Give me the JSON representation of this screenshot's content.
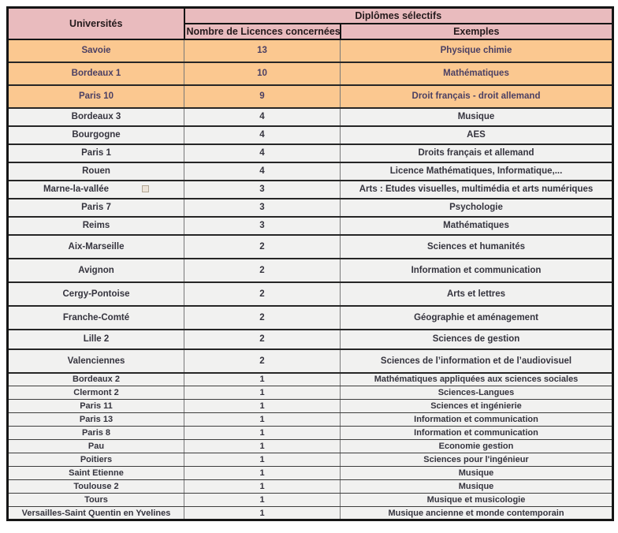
{
  "table": {
    "header": {
      "universities_label": "Universités",
      "group_label": "Diplômes sélectifs",
      "count_label": "Nombre de Licences concernées",
      "examples_label": "Exemples"
    },
    "colors": {
      "header_bg": "#e9bbbe",
      "highlight_row_bg": "#fbc890",
      "row_bg": "#f1f1f0",
      "outer_border": "#151515",
      "highlight_text": "#4a3f63",
      "row_text": "#35343e"
    },
    "rows": [
      {
        "university": "Savoie",
        "count": "13",
        "examples": "Physique chimie",
        "band": "highlight",
        "marker": false
      },
      {
        "university": "Bordeaux 1",
        "count": "10",
        "examples": "Mathématiques",
        "band": "highlight",
        "marker": false
      },
      {
        "university": "Paris 10",
        "count": "9",
        "examples": "Droit français - droit allemand",
        "band": "highlight",
        "marker": false
      },
      {
        "university": "Bordeaux 3",
        "count": "4",
        "examples": "Musique",
        "band": "medium",
        "marker": false
      },
      {
        "university": "Bourgogne",
        "count": "4",
        "examples": "AES",
        "band": "medium",
        "marker": false
      },
      {
        "university": "Paris 1",
        "count": "4",
        "examples": "Droits français et allemand",
        "band": "medium",
        "marker": false
      },
      {
        "university": "Rouen",
        "count": "4",
        "examples": "Licence Mathématiques, Informatique,...",
        "band": "medium",
        "marker": false
      },
      {
        "university": "Marne-la-vallée",
        "count": "3",
        "examples": "Arts : Etudes visuelles, multimédia et arts numériques",
        "band": "medium",
        "marker": true
      },
      {
        "university": "Paris 7",
        "count": "3",
        "examples": "Psychologie",
        "band": "medium",
        "marker": false
      },
      {
        "university": "Reims",
        "count": "3",
        "examples": "Mathématiques",
        "band": "medium",
        "marker": false
      },
      {
        "university": "Aix-Marseille",
        "count": "2",
        "examples": "Sciences et humanités",
        "band": "tall",
        "marker": false
      },
      {
        "university": "Avignon",
        "count": "2",
        "examples": "Information et communication",
        "band": "tall",
        "marker": false
      },
      {
        "university": "Cergy-Pontoise",
        "count": "2",
        "examples": "Arts et lettres",
        "band": "tall",
        "marker": false
      },
      {
        "university": "Franche-Comté",
        "count": "2",
        "examples": "Géographie et aménagement",
        "band": "tall",
        "marker": false
      },
      {
        "university": "Lille 2",
        "count": "2",
        "examples": "Sciences de gestion",
        "band": "medium2",
        "marker": false
      },
      {
        "university": "Valenciennes",
        "count": "2",
        "examples": "Sciences de l’information et de l’audiovisuel",
        "band": "tall",
        "marker": false
      },
      {
        "university": "Bordeaux 2",
        "count": "1",
        "examples": "Mathématiques appliquées aux sciences sociales",
        "band": "short",
        "marker": false
      },
      {
        "university": "Clermont 2",
        "count": "1",
        "examples": "Sciences-Langues",
        "band": "short",
        "marker": false
      },
      {
        "university": "Paris 11",
        "count": "1",
        "examples": "Sciences et ingénierie",
        "band": "short",
        "marker": false
      },
      {
        "university": "Paris 13",
        "count": "1",
        "examples": "Information et communication",
        "band": "short",
        "marker": false
      },
      {
        "university": "Paris 8",
        "count": "1",
        "examples": "Information et communication",
        "band": "short",
        "marker": false
      },
      {
        "university": "Pau",
        "count": "1",
        "examples": "Economie gestion",
        "band": "short",
        "marker": false
      },
      {
        "university": "Poitiers",
        "count": "1",
        "examples": "Sciences pour l'ingénieur",
        "band": "short",
        "marker": false
      },
      {
        "university": "Saint Etienne",
        "count": "1",
        "examples": "Musique",
        "band": "short",
        "marker": false
      },
      {
        "university": "Toulouse 2",
        "count": "1",
        "examples": "Musique",
        "band": "short",
        "marker": false
      },
      {
        "university": "Tours",
        "count": "1",
        "examples": "Musique et musicologie",
        "band": "short",
        "marker": false
      },
      {
        "university": "Versailles-Saint Quentin en Yvelines",
        "count": "1",
        "examples": "Musique ancienne et monde contemporain",
        "band": "short",
        "marker": false
      }
    ]
  },
  "chart_data": {
    "type": "table",
    "title": "Diplômes sélectifs",
    "columns": [
      "Universités",
      "Nombre de Licences concernées",
      "Exemples"
    ],
    "categories": [
      "Savoie",
      "Bordeaux 1",
      "Paris 10",
      "Bordeaux 3",
      "Bourgogne",
      "Paris 1",
      "Rouen",
      "Marne-la-vallée",
      "Paris 7",
      "Reims",
      "Aix-Marseille",
      "Avignon",
      "Cergy-Pontoise",
      "Franche-Comté",
      "Lille 2",
      "Valenciennes",
      "Bordeaux 2",
      "Clermont 2",
      "Paris 11",
      "Paris 13",
      "Paris 8",
      "Pau",
      "Poitiers",
      "Saint Etienne",
      "Toulouse 2",
      "Tours",
      "Versailles-Saint Quentin en Yvelines"
    ],
    "values": [
      13,
      10,
      9,
      4,
      4,
      4,
      4,
      3,
      3,
      3,
      2,
      2,
      2,
      2,
      2,
      2,
      1,
      1,
      1,
      1,
      1,
      1,
      1,
      1,
      1,
      1,
      1
    ],
    "examples": [
      "Physique chimie",
      "Mathématiques",
      "Droit français - droit allemand",
      "Musique",
      "AES",
      "Droits français et allemand",
      "Licence Mathématiques, Informatique,...",
      "Arts : Etudes visuelles, multimédia et arts numériques",
      "Psychologie",
      "Mathématiques",
      "Sciences et humanités",
      "Information et communication",
      "Arts et lettres",
      "Géographie et aménagement",
      "Sciences de gestion",
      "Sciences de l’information et de l’audiovisuel",
      "Mathématiques appliquées aux sciences sociales",
      "Sciences-Langues",
      "Sciences et ingénierie",
      "Information et communication",
      "Information et communication",
      "Economie gestion",
      "Sciences pour l'ingénieur",
      "Musique",
      "Musique",
      "Musique et musicologie",
      "Musique ancienne et monde contemporain"
    ],
    "highlighted_rows": [
      0,
      1,
      2
    ]
  }
}
